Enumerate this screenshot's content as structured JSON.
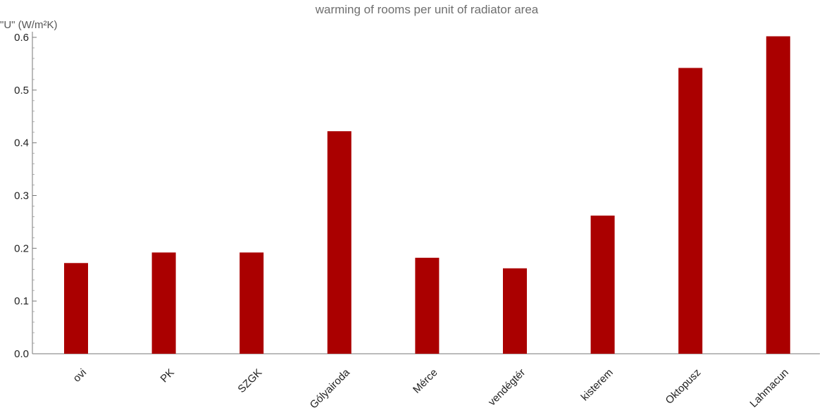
{
  "chart_data": {
    "type": "bar",
    "title": "warming of rooms per unit of radiator area",
    "xlabel": "",
    "ylabel": "\"U\" (W/m²K)",
    "categories": [
      "ovi",
      "PK",
      "SZGK",
      "Gólyairoda",
      "Mérce",
      "vendégtér",
      "kisterem",
      "Oktopusz",
      "Lahmacun"
    ],
    "values": [
      0.172,
      0.192,
      0.192,
      0.422,
      0.182,
      0.162,
      0.262,
      0.542,
      0.602
    ],
    "ylim": [
      0,
      0.6
    ],
    "yticks": [
      "0.0",
      "0.1",
      "0.2",
      "0.3",
      "0.4",
      "0.5",
      "0.6"
    ],
    "bar_color": "#aa0000",
    "grid": false,
    "legend": "none"
  }
}
